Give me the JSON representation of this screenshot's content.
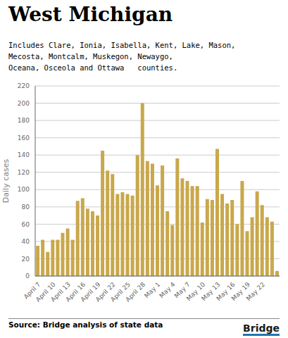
{
  "chart_data": {
    "type": "bar",
    "title": "West Michigan",
    "subtitle": "Includes Clare, Ionia, Isabella, Kent, Lake, Mason,\nMecosta, Montcalm, Muskegon, Newaygo,\nOceana, Osceola and Ottawa   counties.",
    "source": "Source: Bridge analysis of state data",
    "annotations": [
      "Bridge"
    ],
    "ylabel": "Daily cases",
    "categories": [
      "April 7",
      null,
      null,
      "April 10",
      null,
      null,
      "April 13",
      null,
      null,
      "April 16",
      null,
      null,
      "April 19",
      null,
      null,
      "April 22",
      null,
      null,
      "April 25",
      null,
      null,
      "April 28",
      null,
      null,
      "May 1",
      null,
      null,
      "May 4",
      null,
      null,
      "May 7",
      null,
      null,
      "May 10",
      null,
      null,
      "May 13",
      null,
      null,
      "May 16",
      null,
      null,
      "May 19",
      null,
      null,
      "May 22",
      null,
      null,
      null
    ],
    "values": [
      35,
      42,
      28,
      42,
      42,
      50,
      55,
      42,
      87,
      90,
      78,
      75,
      70,
      145,
      122,
      118,
      95,
      97,
      95,
      93,
      140,
      200,
      133,
      130,
      105,
      128,
      75,
      59,
      136,
      113,
      110,
      104,
      104,
      62,
      89,
      88,
      147,
      95,
      84,
      88,
      60,
      110,
      52,
      68,
      98,
      82,
      68,
      63,
      6
    ],
    "color": "#C9A84C",
    "ylim": [
      0,
      220
    ],
    "yticks": [
      0,
      20,
      40,
      60,
      80,
      100,
      120,
      140,
      160,
      180,
      200,
      220
    ],
    "grid": true
  }
}
